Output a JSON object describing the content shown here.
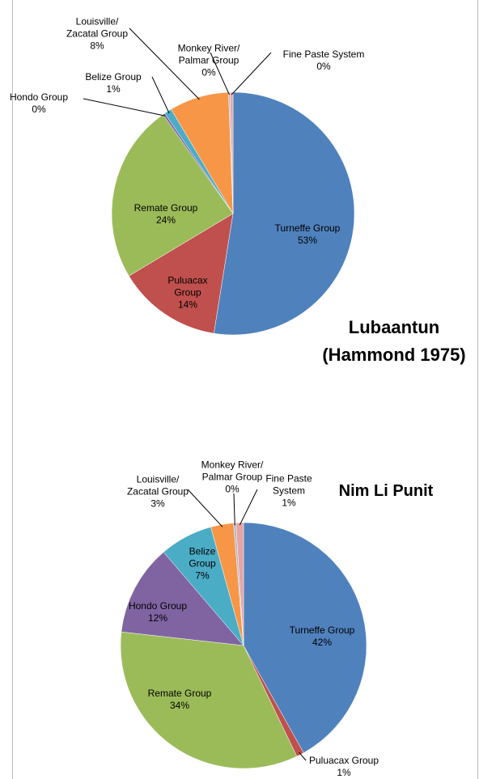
{
  "chart_data": [
    {
      "type": "pie",
      "title": "Lubaantun (Hammond 1975)",
      "categories": [
        "Turneffe Group",
        "Puluacax Group",
        "Remate Group",
        "Hondo Group",
        "Belize Group",
        "Louisville/ Zacatal Group",
        "Monkey River/ Palmar Group",
        "Fine Paste System"
      ],
      "values": [
        53,
        14,
        24,
        0.3,
        1,
        8,
        0.2,
        0.4
      ],
      "value_labels": [
        "53%",
        "14%",
        "24%",
        "0%",
        "1%",
        "8%",
        "0%",
        "0%"
      ],
      "colors": [
        "#4f81bd",
        "#c0504d",
        "#9bbb59",
        "#8064a2",
        "#4bacc6",
        "#f79646",
        "#a9b8d0",
        "#e6a5a5"
      ]
    },
    {
      "type": "pie",
      "title": "Nim Li Punit",
      "categories": [
        "Turneffe Group",
        "Puluacax Group",
        "Remate Group",
        "Hondo Group",
        "Belize Group",
        "Louisville/ Zacatal Group",
        "Monkey River/ Palmar Group",
        "Fine Paste System"
      ],
      "values": [
        42,
        1,
        34,
        12,
        7,
        3,
        0.3,
        1
      ],
      "value_labels": [
        "42%",
        "1%",
        "34%",
        "12%",
        "7%",
        "3%",
        "0%",
        "1%"
      ],
      "colors": [
        "#4f81bd",
        "#c0504d",
        "#9bbb59",
        "#8064a2",
        "#4bacc6",
        "#f79646",
        "#a9b8d0",
        "#e6a5a5"
      ]
    }
  ]
}
